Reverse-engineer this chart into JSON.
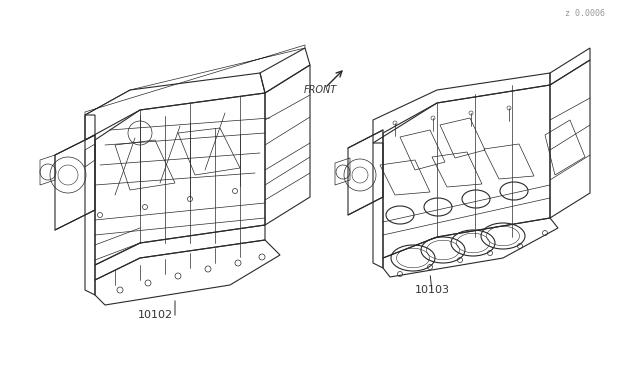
{
  "background_color": "#ffffff",
  "line_color": "#2a2a2a",
  "label_color": "#333333",
  "label_10102": "10102",
  "label_10103": "10103",
  "front_label": "FRONT",
  "watermark": "z 0.0006",
  "fig_width": 6.4,
  "fig_height": 3.72,
  "dpi": 100
}
